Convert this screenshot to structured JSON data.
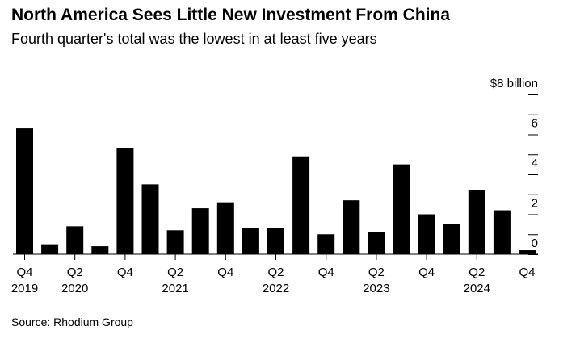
{
  "title": "North America Sees Little New Investment From China",
  "subtitle": "Fourth quarter's total was the lowest in at least five years",
  "source": "Source: Rhodium Group",
  "chart_data": {
    "type": "bar",
    "categories": [
      "Q4 2019",
      "Q1 2020",
      "Q2 2020",
      "Q3 2020",
      "Q4 2020",
      "Q1 2021",
      "Q2 2021",
      "Q3 2021",
      "Q4 2021",
      "Q1 2022",
      "Q2 2022",
      "Q3 2022",
      "Q4 2022",
      "Q1 2023",
      "Q2 2023",
      "Q3 2023",
      "Q4 2023",
      "Q1 2024",
      "Q2 2024",
      "Q3 2024",
      "Q4 2024"
    ],
    "values": [
      6.3,
      0.5,
      1.4,
      0.4,
      5.3,
      3.5,
      1.2,
      2.3,
      2.6,
      1.3,
      1.3,
      4.9,
      1.0,
      2.7,
      1.1,
      4.5,
      2.0,
      1.5,
      3.2,
      2.2,
      0.2
    ],
    "x_tick_labels": [
      {
        "index": 0,
        "quarter": "Q4",
        "year": "2019"
      },
      {
        "index": 2,
        "quarter": "Q2",
        "year": "2020"
      },
      {
        "index": 4,
        "quarter": "Q4",
        "year": ""
      },
      {
        "index": 6,
        "quarter": "Q2",
        "year": "2021"
      },
      {
        "index": 8,
        "quarter": "Q4",
        "year": ""
      },
      {
        "index": 10,
        "quarter": "Q2",
        "year": "2022"
      },
      {
        "index": 12,
        "quarter": "Q4",
        "year": ""
      },
      {
        "index": 14,
        "quarter": "Q2",
        "year": "2023"
      },
      {
        "index": 16,
        "quarter": "Q4",
        "year": ""
      },
      {
        "index": 18,
        "quarter": "Q2",
        "year": "2024"
      },
      {
        "index": 20,
        "quarter": "Q4",
        "year": ""
      }
    ],
    "y_ticks": [
      0,
      1,
      2,
      3,
      4,
      5,
      6,
      7,
      8
    ],
    "y_tick_labels": {
      "0": "0",
      "2": "2",
      "4": "4",
      "6": "6",
      "8": "$8 billion"
    },
    "ylim": [
      0,
      8
    ],
    "bar_color": "#000000",
    "grid": false
  }
}
